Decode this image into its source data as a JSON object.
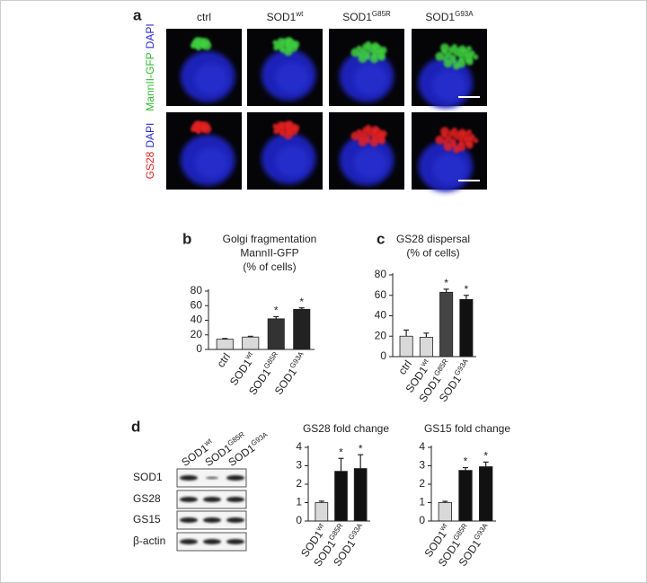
{
  "panel_a": {
    "label": "a",
    "columns": [
      {
        "text": "ctrl"
      },
      {
        "text": "SOD1",
        "sup": "wt"
      },
      {
        "text": "SOD1",
        "sup": "G85R"
      },
      {
        "text": "SOD1",
        "sup": "G93A"
      }
    ],
    "rows": [
      [
        {
          "text": "MannII-GFP",
          "color": "#2db82d"
        },
        {
          "text": "DAPI",
          "color": "#2a2ad8"
        }
      ],
      [
        {
          "text": "GS28",
          "color": "#e02020"
        },
        {
          "text": "DAPI",
          "color": "#2a2ad8"
        }
      ]
    ]
  },
  "panel_d_blot": {
    "label": "d",
    "columns": [
      {
        "text": "SOD1",
        "sup": "wt"
      },
      {
        "text": "SOD1",
        "sup": "G85R"
      },
      {
        "text": "SOD1",
        "sup": "G93A"
      }
    ],
    "rows": [
      "SOD1",
      "GS28",
      "GS15",
      "β-actin"
    ]
  },
  "chart_data": [
    {
      "type": "bar",
      "panel": "b",
      "title": [
        "Golgi fragmentation",
        "MannII-GFP",
        "(% of cells)"
      ],
      "categories": [
        {
          "text": "ctrl"
        },
        {
          "text": "SOD1",
          "sup": "wt"
        },
        {
          "text": "SOD1",
          "sup": "G85R"
        },
        {
          "text": "SOD1",
          "sup": "G93A"
        }
      ],
      "values": [
        14,
        17,
        42,
        55
      ],
      "errors": [
        1,
        1,
        3,
        2
      ],
      "significance": [
        null,
        null,
        "*",
        "*"
      ],
      "colors": [
        "#d9d9d9",
        "#d9d9d9",
        "#333333",
        "#222222"
      ],
      "ylim": [
        0,
        80
      ],
      "yticks": [
        0,
        20,
        40,
        60,
        80
      ]
    },
    {
      "type": "bar",
      "panel": "c",
      "title": [
        "GS28 dispersal",
        "(% of cells)"
      ],
      "categories": [
        {
          "text": "ctrl"
        },
        {
          "text": "SOD1",
          "sup": "wt"
        },
        {
          "text": "SOD1",
          "sup": "G85R"
        },
        {
          "text": "SOD1",
          "sup": "G93A"
        }
      ],
      "values": [
        20,
        19,
        63,
        56
      ],
      "errors": [
        6,
        4,
        3,
        4
      ],
      "significance": [
        null,
        null,
        "*",
        "*"
      ],
      "colors": [
        "#d9d9d9",
        "#d9d9d9",
        "#444444",
        "#111111"
      ],
      "ylim": [
        0,
        80
      ],
      "yticks": [
        0,
        20,
        40,
        60,
        80
      ]
    },
    {
      "type": "bar",
      "title": [
        "GS28 fold change"
      ],
      "categories": [
        {
          "text": "SOD1",
          "sup": "wt"
        },
        {
          "text": "SOD1",
          "sup": "G85R"
        },
        {
          "text": "SOD1",
          "sup": "G93A"
        }
      ],
      "values": [
        1.0,
        2.7,
        2.85
      ],
      "errors": [
        0.08,
        0.7,
        0.75
      ],
      "significance": [
        null,
        "*",
        "*"
      ],
      "colors": [
        "#d9d9d9",
        "#111111",
        "#111111"
      ],
      "ylim": [
        0,
        4
      ],
      "yticks": [
        0,
        1,
        2,
        3,
        4
      ]
    },
    {
      "type": "bar",
      "title": [
        "GS15 fold change"
      ],
      "categories": [
        {
          "text": "SOD1",
          "sup": "wt"
        },
        {
          "text": "SOD1",
          "sup": "G85R"
        },
        {
          "text": "SOD1",
          "sup": "G93A"
        }
      ],
      "values": [
        1.0,
        2.75,
        2.95
      ],
      "errors": [
        0.07,
        0.15,
        0.25
      ],
      "significance": [
        null,
        "*",
        "*"
      ],
      "colors": [
        "#d9d9d9",
        "#111111",
        "#111111"
      ],
      "ylim": [
        0,
        4
      ],
      "yticks": [
        0,
        1,
        2,
        3,
        4
      ]
    }
  ]
}
